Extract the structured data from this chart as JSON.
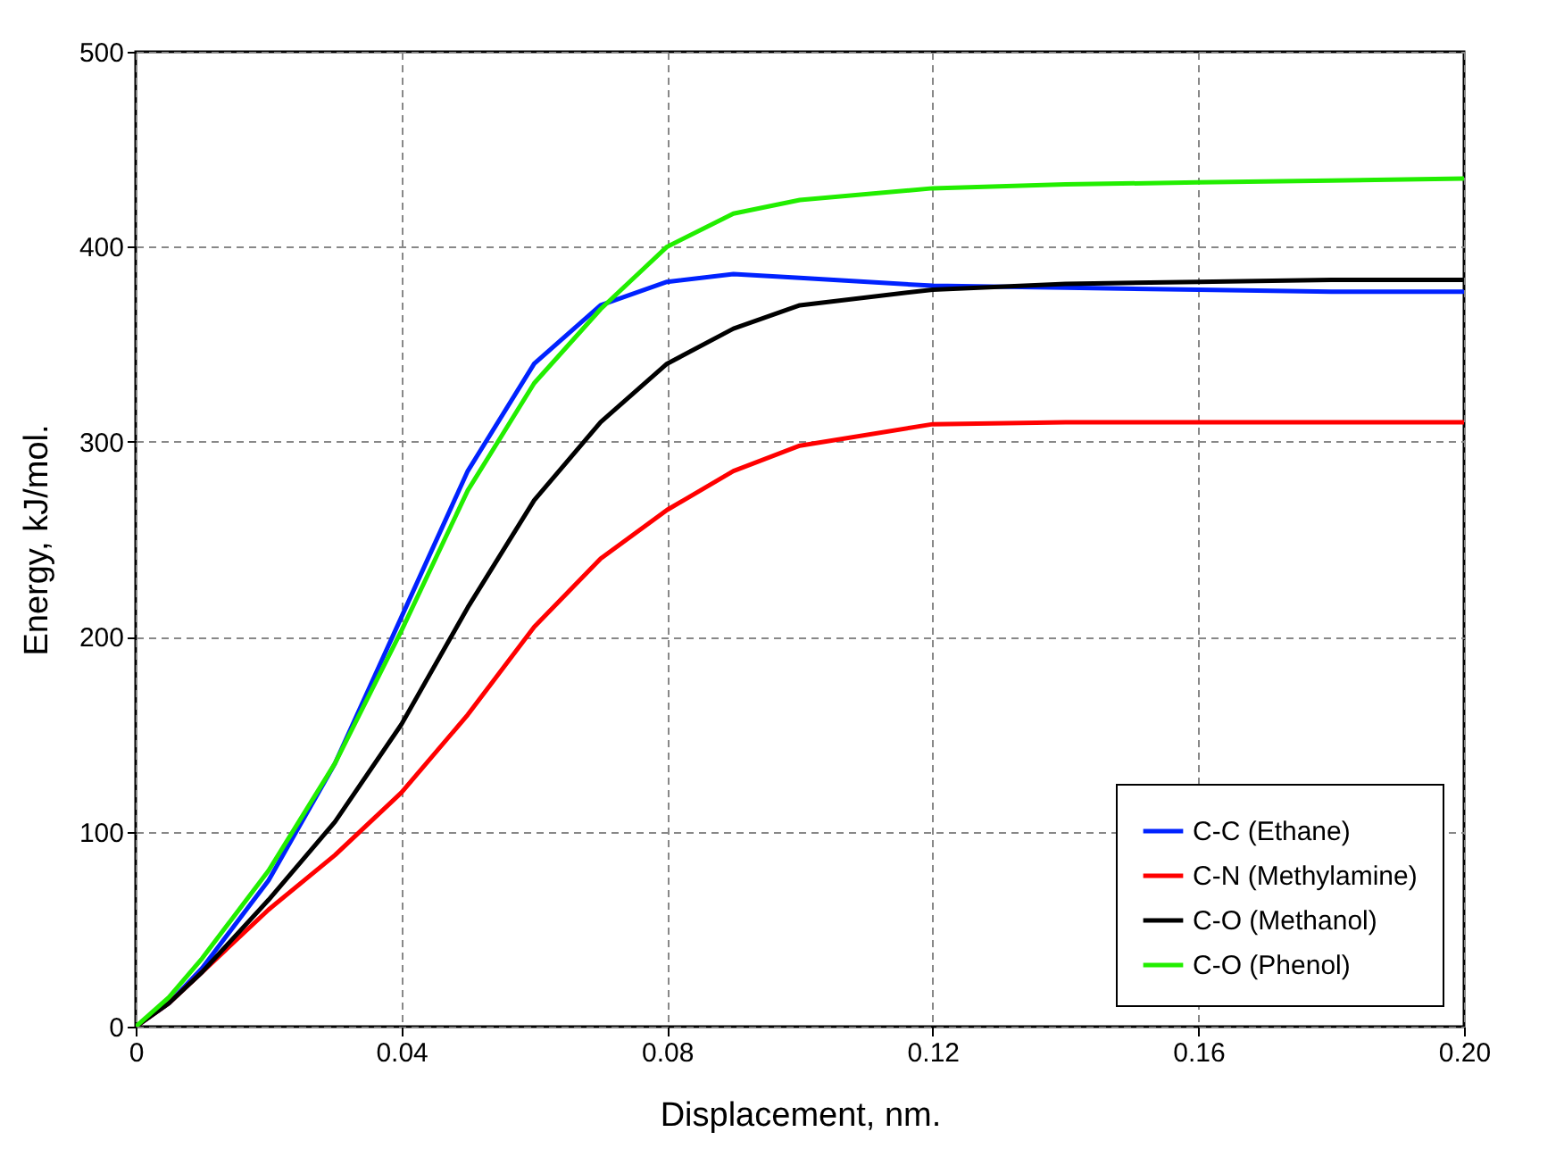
{
  "chart_data": {
    "type": "line",
    "xlabel": "Displacement, nm.",
    "ylabel": "Energy, kJ/mol.",
    "x": [
      0,
      0.005,
      0.01,
      0.02,
      0.03,
      0.04,
      0.05,
      0.06,
      0.07,
      0.08,
      0.09,
      0.1,
      0.12,
      0.14,
      0.16,
      0.18,
      0.2
    ],
    "series": [
      {
        "name": "C-C (Ethane)",
        "color": "#0022ff",
        "values": [
          0,
          12,
          30,
          75,
          135,
          210,
          285,
          340,
          370,
          382,
          386,
          384,
          380,
          379,
          378,
          377,
          377
        ]
      },
      {
        "name": "C-N (Methylamine)",
        "color": "#ff0000",
        "values": [
          0,
          12,
          28,
          60,
          88,
          120,
          160,
          205,
          240,
          265,
          285,
          298,
          309,
          310,
          310,
          310,
          310
        ]
      },
      {
        "name": "C-O (Methanol)",
        "color": "#000000",
        "values": [
          0,
          12,
          28,
          65,
          105,
          155,
          215,
          270,
          310,
          340,
          358,
          370,
          378,
          381,
          382,
          383,
          383
        ]
      },
      {
        "name": "C-O (Phenol)",
        "color": "#22ee00",
        "values": [
          0,
          15,
          35,
          80,
          135,
          203,
          275,
          330,
          368,
          400,
          417,
          424,
          430,
          432,
          433,
          434,
          435
        ]
      }
    ],
    "xlim": [
      0,
      0.2
    ],
    "xticks": [
      0,
      {
        "value": 0.04,
        "label": "0.04"
      },
      {
        "value": 0.08,
        "label": "0.08"
      },
      0.12,
      0.16,
      {
        "value": 0.2,
        "label": "0.20"
      }
    ],
    "ylim": [
      0,
      500
    ],
    "yticks": [
      0,
      100,
      200,
      300,
      400,
      500
    ],
    "grid": true,
    "legend": "bottom right",
    "line_style": "solid"
  }
}
